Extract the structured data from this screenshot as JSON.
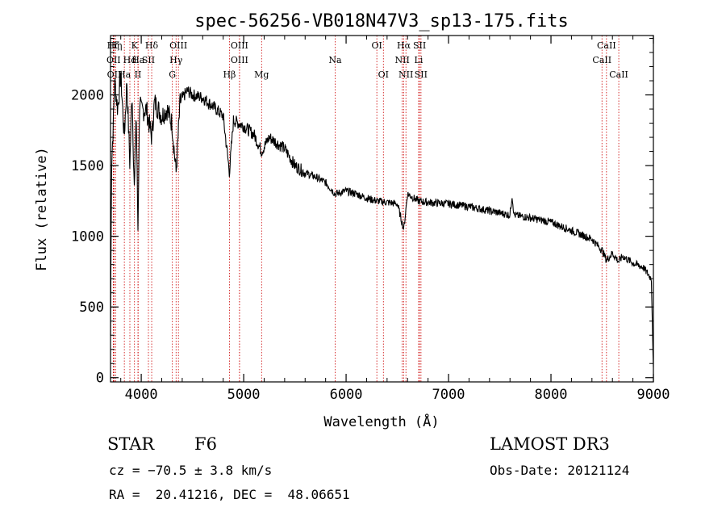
{
  "chart_data": {
    "type": "line",
    "title": "spec-56256-VB018N47V3_sp13-175.fits",
    "xlabel": "Wavelength (Å)",
    "ylabel": "Flux (relative)",
    "xlim": [
      3700,
      9000
    ],
    "ylim": [
      -30,
      2420
    ],
    "xticks": [
      4000,
      5000,
      6000,
      7000,
      8000,
      9000
    ],
    "yticks": [
      0,
      500,
      1000,
      1500,
      2000
    ],
    "spectrum_anchors": [
      [
        3700,
        300
      ],
      [
        3710,
        1500
      ],
      [
        3725,
        1750
      ],
      [
        3740,
        2100
      ],
      [
        3770,
        1900
      ],
      [
        3800,
        2150
      ],
      [
        3834,
        1700
      ],
      [
        3860,
        2100
      ],
      [
        3889,
        1500
      ],
      [
        3910,
        2050
      ],
      [
        3933,
        1300
      ],
      [
        3950,
        1900
      ],
      [
        3968,
        1050
      ],
      [
        3985,
        2000
      ],
      [
        4000,
        1880
      ],
      [
        4050,
        1900
      ],
      [
        4102,
        1700
      ],
      [
        4130,
        1950
      ],
      [
        4200,
        1850
      ],
      [
        4250,
        1900
      ],
      [
        4300,
        1800
      ],
      [
        4340,
        1450
      ],
      [
        4380,
        1950
      ],
      [
        4450,
        2030
      ],
      [
        4500,
        2000
      ],
      [
        4600,
        1980
      ],
      [
        4700,
        1920
      ],
      [
        4800,
        1850
      ],
      [
        4861,
        1450
      ],
      [
        4900,
        1820
      ],
      [
        5000,
        1780
      ],
      [
        5100,
        1720
      ],
      [
        5175,
        1600
      ],
      [
        5250,
        1700
      ],
      [
        5400,
        1620
      ],
      [
        5500,
        1500
      ],
      [
        5600,
        1450
      ],
      [
        5700,
        1420
      ],
      [
        5800,
        1380
      ],
      [
        5893,
        1300
      ],
      [
        6000,
        1320
      ],
      [
        6100,
        1300
      ],
      [
        6200,
        1270
      ],
      [
        6300,
        1250
      ],
      [
        6400,
        1240
      ],
      [
        6500,
        1230
      ],
      [
        6563,
        1050
      ],
      [
        6600,
        1300
      ],
      [
        6700,
        1250
      ],
      [
        6800,
        1240
      ],
      [
        7000,
        1230
      ],
      [
        7200,
        1210
      ],
      [
        7400,
        1180
      ],
      [
        7600,
        1150
      ],
      [
        7620,
        1290
      ],
      [
        7640,
        1150
      ],
      [
        7800,
        1130
      ],
      [
        8000,
        1100
      ],
      [
        8200,
        1040
      ],
      [
        8400,
        980
      ],
      [
        8500,
        900
      ],
      [
        8542,
        830
      ],
      [
        8600,
        880
      ],
      [
        8662,
        820
      ],
      [
        8700,
        860
      ],
      [
        8800,
        810
      ],
      [
        8900,
        780
      ],
      [
        8980,
        700
      ],
      [
        9000,
        50
      ]
    ],
    "lines": [
      {
        "label": "Hζ",
        "wl": 3727,
        "row": 0
      },
      {
        "label": "Hη",
        "wl": 3750,
        "row": 0
      },
      {
        "label": "OII",
        "wl": 3730,
        "row": 1
      },
      {
        "label": "OII",
        "wl": 3735,
        "row": 2
      },
      {
        "label": "K",
        "wl": 3934,
        "row": 0
      },
      {
        "label": "Hd",
        "wl": 3889,
        "row": 1
      },
      {
        "label": "Ha",
        "wl": 3970,
        "row": 1
      },
      {
        "label": "SII",
        "wl": 4070,
        "row": 1
      },
      {
        "label": "Ha",
        "wl": 3835,
        "row": 2
      },
      {
        "label": "II",
        "wl": 3968,
        "row": 2
      },
      {
        "label": "Hδ",
        "wl": 4102,
        "row": 0
      },
      {
        "label": "OIII",
        "wl": 4363,
        "row": 0
      },
      {
        "label": "Hγ",
        "wl": 4340,
        "row": 1
      },
      {
        "label": "G",
        "wl": 4304,
        "row": 2
      },
      {
        "label": "OIII",
        "wl": 4959,
        "row": 0
      },
      {
        "label": "OIII",
        "wl": 4959,
        "row": 1
      },
      {
        "label": "Hβ",
        "wl": 4861,
        "row": 2
      },
      {
        "label": "Mg",
        "wl": 5175,
        "row": 2
      },
      {
        "label": "Na",
        "wl": 5893,
        "row": 1
      },
      {
        "label": "OI",
        "wl": 6300,
        "row": 0
      },
      {
        "label": "OI",
        "wl": 6364,
        "row": 2
      },
      {
        "label": "Hα",
        "wl": 6563,
        "row": 0
      },
      {
        "label": "SII",
        "wl": 6717,
        "row": 0
      },
      {
        "label": "NII",
        "wl": 6548,
        "row": 1
      },
      {
        "label": "Li",
        "wl": 6708,
        "row": 1
      },
      {
        "label": "NII",
        "wl": 6584,
        "row": 2
      },
      {
        "label": "SII",
        "wl": 6731,
        "row": 2
      },
      {
        "label": "CaII",
        "wl": 8542,
        "row": 0
      },
      {
        "label": "CaII",
        "wl": 8498,
        "row": 1
      },
      {
        "label": "CaII",
        "wl": 8662,
        "row": 2
      }
    ],
    "line_color": "#cc0000",
    "spectrum_color": "#000000"
  },
  "footer": {
    "object_class": "STAR",
    "subclass": "F6",
    "survey": "LAMOST DR3",
    "cz": "cz = −70.5 ± 3.8 km/s",
    "obs_date": "Obs-Date: 20121124",
    "coords": "RA =  20.41216, DEC =  48.06651"
  }
}
